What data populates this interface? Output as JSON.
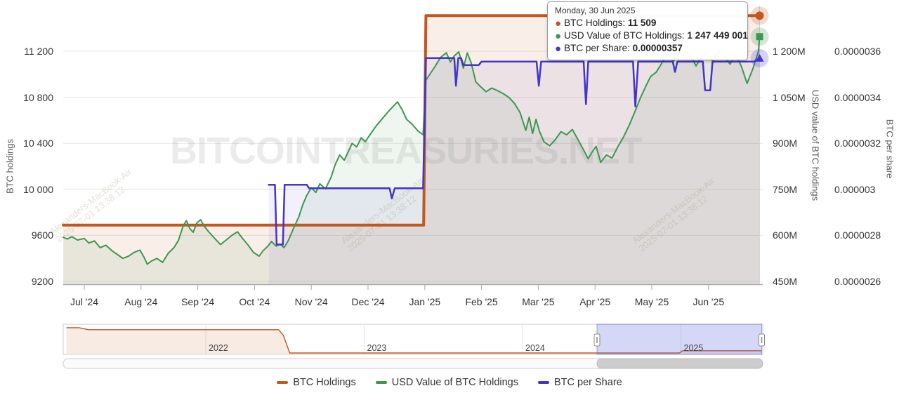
{
  "colors": {
    "orange": "#c2571f",
    "green": "#3d9751",
    "purple": "#4334cb",
    "orange_fill": "rgba(194,87,31,0.10)",
    "green_fill": "rgba(61,151,81,0.09)",
    "purple_fill": "rgba(67,52,203,0.07)",
    "grid": "#e7e7e5",
    "axis_line": "#a9a9a9",
    "crosshair": "#d6d6d6",
    "nav_selection": "rgba(104,112,224,0.28)",
    "nav_selection_border": "rgba(90,98,205,0.55)",
    "nav_border": "#cccccc",
    "nav_grid": "#e2e2e2",
    "scroll_thumb": "#cdcdcd",
    "watermark_brand": "#8a8a8a",
    "watermark_session": "#9a8f6a"
  },
  "tooltip": {
    "date": "Monday, 30 Jun 2025",
    "rows": [
      {
        "label": "BTC Holdings: ",
        "value": "11 509",
        "color": "#c2571f"
      },
      {
        "label": "USD Value of BTC Holdings: ",
        "value": "1 247 449 001",
        "color": "#3d9751"
      },
      {
        "label": "BTC per Share: ",
        "value": "0.00000357",
        "color": "#4334cb"
      }
    ]
  },
  "legend": {
    "items": [
      {
        "label": "BTC Holdings",
        "color": "#c2571f"
      },
      {
        "label": "USD Value of BTC Holdings",
        "color": "#3d9751"
      },
      {
        "label": "BTC per Share",
        "color": "#4334cb"
      }
    ]
  },
  "watermarks": {
    "brand": "BITCOINTREASURIES.NET",
    "brand_tm": "™",
    "session_line1": "Alexanders-MacBook-Air",
    "session_line2": "2025-07-01 13:38:12"
  },
  "chart_data": {
    "type": "line",
    "title": "",
    "grid": true,
    "legend_position": "bottom",
    "axes": {
      "left": {
        "title": "BTC holdings",
        "min": 9200,
        "step": 400,
        "ticks": [
          {
            "label": "9200",
            "v": 9200
          },
          {
            "label": "9600",
            "v": 9600
          },
          {
            "label": "10 000",
            "v": 10000
          },
          {
            "label": "10 400",
            "v": 10400
          },
          {
            "label": "10 800",
            "v": 10800
          },
          {
            "label": "11 200",
            "v": 11200
          }
        ]
      },
      "usd": {
        "title": "USD value of BTC holdings",
        "min": 450,
        "step": 150,
        "ticks": [
          {
            "label": "450M",
            "v": 450
          },
          {
            "label": "600M",
            "v": 600
          },
          {
            "label": "750M",
            "v": 750
          },
          {
            "label": "900M",
            "v": 900
          },
          {
            "label": "1 050M",
            "v": 1050
          },
          {
            "label": "1 200M",
            "v": 1200
          }
        ]
      },
      "share": {
        "title": "BTC per share",
        "min": 2.6e-06,
        "step": 2e-07,
        "ticks": [
          {
            "label": "0.0000026",
            "v": 2.6e-06
          },
          {
            "label": "0.0000028",
            "v": 2.8e-06
          },
          {
            "label": "0.000003",
            "v": 3e-06
          },
          {
            "label": "0.0000032",
            "v": 3.2e-06
          },
          {
            "label": "0.0000034",
            "v": 3.4e-06
          },
          {
            "label": "0.0000036",
            "v": 3.6e-06
          }
        ]
      },
      "x": {
        "ticks": [
          {
            "label": "Jul '24",
            "m": 0
          },
          {
            "label": "Aug '24",
            "m": 1
          },
          {
            "label": "Sep '24",
            "m": 2
          },
          {
            "label": "Oct '24",
            "m": 3
          },
          {
            "label": "Nov '24",
            "m": 4
          },
          {
            "label": "Dec '24",
            "m": 5
          },
          {
            "label": "Jan '25",
            "m": 6
          },
          {
            "label": "Feb '25",
            "m": 7
          },
          {
            "label": "Mar '25",
            "m": 8
          },
          {
            "label": "Apr '25",
            "m": 9
          },
          {
            "label": "May '25",
            "m": 10
          },
          {
            "label": "Jun '25",
            "m": 11
          }
        ]
      }
    },
    "series": [
      {
        "name": "BTC Holdings",
        "axis": "left",
        "color": "#c2571f",
        "width": 4,
        "fill": "rgba(194,87,31,0.10)",
        "points": [
          [
            -0.37,
            9689
          ],
          [
            5.98,
            9689
          ],
          [
            6.02,
            11509
          ],
          [
            11.9,
            11509
          ]
        ]
      },
      {
        "name": "USD Value of BTC Holdings",
        "axis": "usd",
        "color": "#3d9751",
        "width": 2,
        "fill": "rgba(61,151,81,0.09)",
        "points": [
          [
            -0.37,
            594
          ],
          [
            -0.3,
            588
          ],
          [
            -0.22,
            596
          ],
          [
            -0.12,
            585
          ],
          [
            0,
            590
          ],
          [
            0.08,
            575
          ],
          [
            0.18,
            582
          ],
          [
            0.28,
            560
          ],
          [
            0.38,
            568
          ],
          [
            0.5,
            548
          ],
          [
            0.58,
            538
          ],
          [
            0.68,
            525
          ],
          [
            0.78,
            532
          ],
          [
            0.88,
            545
          ],
          [
            0.98,
            552
          ],
          [
            1.05,
            530
          ],
          [
            1.11,
            506
          ],
          [
            1.18,
            516
          ],
          [
            1.28,
            525
          ],
          [
            1.38,
            512
          ],
          [
            1.48,
            542
          ],
          [
            1.58,
            560
          ],
          [
            1.66,
            584
          ],
          [
            1.74,
            630
          ],
          [
            1.8,
            648
          ],
          [
            1.86,
            622
          ],
          [
            1.92,
            610
          ],
          [
            1.98,
            640
          ],
          [
            2.05,
            651
          ],
          [
            2.12,
            628
          ],
          [
            2.2,
            610
          ],
          [
            2.3,
            590
          ],
          [
            2.4,
            570
          ],
          [
            2.5,
            585
          ],
          [
            2.6,
            600
          ],
          [
            2.7,
            612
          ],
          [
            2.78,
            592
          ],
          [
            2.88,
            570
          ],
          [
            2.98,
            545
          ],
          [
            3.08,
            532
          ],
          [
            3.15,
            550
          ],
          [
            3.22,
            562
          ],
          [
            3.3,
            580
          ],
          [
            3.38,
            565
          ],
          [
            3.45,
            572
          ],
          [
            3.52,
            560
          ],
          [
            3.6,
            585
          ],
          [
            3.68,
            620
          ],
          [
            3.78,
            660
          ],
          [
            3.85,
            700
          ],
          [
            3.92,
            730
          ],
          [
            4,
            755
          ],
          [
            4.08,
            740
          ],
          [
            4.15,
            768
          ],
          [
            4.25,
            752
          ],
          [
            4.35,
            790
          ],
          [
            4.42,
            830
          ],
          [
            4.5,
            862
          ],
          [
            4.58,
            845
          ],
          [
            4.65,
            872
          ],
          [
            4.72,
            900
          ],
          [
            4.8,
            888
          ],
          [
            4.88,
            918
          ],
          [
            4.95,
            905
          ],
          [
            5.05,
            932
          ],
          [
            5.15,
            958
          ],
          [
            5.25,
            980
          ],
          [
            5.35,
            1002
          ],
          [
            5.45,
            1022
          ],
          [
            5.52,
            1035
          ],
          [
            5.6,
            1010
          ],
          [
            5.68,
            978
          ],
          [
            5.78,
            962
          ],
          [
            5.88,
            940
          ],
          [
            5.97,
            928
          ],
          [
            6.02,
            1105
          ],
          [
            6.1,
            1128
          ],
          [
            6.18,
            1150
          ],
          [
            6.28,
            1180
          ],
          [
            6.38,
            1195
          ],
          [
            6.45,
            1165
          ],
          [
            6.52,
            1185
          ],
          [
            6.6,
            1198
          ],
          [
            6.68,
            1145
          ],
          [
            6.75,
            1195
          ],
          [
            6.82,
            1160
          ],
          [
            6.9,
            1100
          ],
          [
            6.98,
            1085
          ],
          [
            7.08,
            1068
          ],
          [
            7.18,
            1080
          ],
          [
            7.28,
            1072
          ],
          [
            7.38,
            1062
          ],
          [
            7.48,
            1050
          ],
          [
            7.58,
            1030
          ],
          [
            7.68,
            1000
          ],
          [
            7.78,
            942
          ],
          [
            7.84,
            985
          ],
          [
            7.9,
            932
          ],
          [
            7.96,
            978
          ],
          [
            8.02,
            940
          ],
          [
            8.1,
            905
          ],
          [
            8.2,
            892
          ],
          [
            8.3,
            912
          ],
          [
            8.4,
            938
          ],
          [
            8.5,
            928
          ],
          [
            8.6,
            945
          ],
          [
            8.7,
            912
          ],
          [
            8.8,
            878
          ],
          [
            8.88,
            850
          ],
          [
            8.95,
            872
          ],
          [
            9.02,
            890
          ],
          [
            9.1,
            838
          ],
          [
            9.2,
            862
          ],
          [
            9.3,
            852
          ],
          [
            9.4,
            888
          ],
          [
            9.5,
            920
          ],
          [
            9.6,
            958
          ],
          [
            9.7,
            1002
          ],
          [
            9.8,
            1048
          ],
          [
            9.9,
            1088
          ],
          [
            9.98,
            1118
          ],
          [
            10.08,
            1132
          ],
          [
            10.18,
            1162
          ],
          [
            10.28,
            1192
          ],
          [
            10.38,
            1165
          ],
          [
            10.48,
            1198
          ],
          [
            10.58,
            1178
          ],
          [
            10.68,
            1188
          ],
          [
            10.78,
            1152
          ],
          [
            10.88,
            1182
          ],
          [
            10.98,
            1195
          ],
          [
            11.08,
            1165
          ],
          [
            11.18,
            1200
          ],
          [
            11.28,
            1182
          ],
          [
            11.38,
            1158
          ],
          [
            11.48,
            1190
          ],
          [
            11.58,
            1150
          ],
          [
            11.68,
            1095
          ],
          [
            11.78,
            1142
          ],
          [
            11.88,
            1200
          ],
          [
            11.9,
            1247.449
          ]
        ]
      },
      {
        "name": "BTC per Share",
        "axis": "share",
        "color": "#4334cb",
        "width": 2.5,
        "fill": "rgba(67,52,203,0.07)",
        "points": [
          [
            3.25,
            3.02e-06
          ],
          [
            3.36,
            3.02e-06
          ],
          [
            3.39,
            2.76e-06
          ],
          [
            3.5,
            2.76e-06
          ],
          [
            3.53,
            3.02e-06
          ],
          [
            3.92,
            3.02e-06
          ],
          [
            3.96,
            3.005e-06
          ],
          [
            5.38,
            3.005e-06
          ],
          [
            5.42,
            2.96e-06
          ],
          [
            5.47,
            3.005e-06
          ],
          [
            5.97,
            3.005e-06
          ],
          [
            6.02,
            3.57e-06
          ],
          [
            6.52,
            3.57e-06
          ],
          [
            6.55,
            3.45e-06
          ],
          [
            6.59,
            3.57e-06
          ],
          [
            6.64,
            3.57e-06
          ],
          [
            6.68,
            3.54e-06
          ],
          [
            6.95,
            3.54e-06
          ],
          [
            7,
            3.555e-06
          ],
          [
            7.97,
            3.555e-06
          ],
          [
            8.01,
            3.45e-06
          ],
          [
            8.05,
            3.555e-06
          ],
          [
            8.8,
            3.555e-06
          ],
          [
            8.84,
            3.37e-06
          ],
          [
            8.88,
            3.555e-06
          ],
          [
            9.67,
            3.555e-06
          ],
          [
            9.71,
            3.36e-06
          ],
          [
            9.76,
            3.555e-06
          ],
          [
            10.37,
            3.555e-06
          ],
          [
            10.41,
            3.51e-06
          ],
          [
            10.45,
            3.555e-06
          ],
          [
            10.9,
            3.555e-06
          ],
          [
            10.94,
            3.43e-06
          ],
          [
            11.03,
            3.43e-06
          ],
          [
            11.07,
            3.555e-06
          ],
          [
            11.8,
            3.555e-06
          ],
          [
            11.9,
            3.57e-06
          ]
        ]
      }
    ],
    "hover": {
      "m": 11.9,
      "points": [
        {
          "series": 0,
          "v": 11509,
          "shape": "circle"
        },
        {
          "series": 1,
          "v": 1247.449,
          "shape": "square"
        },
        {
          "series": 2,
          "v": 3.57e-06,
          "shape": "triangle"
        }
      ]
    },
    "navigator": {
      "year_labels": [
        {
          "label": "2022",
          "year": 2022
        },
        {
          "label": "2023",
          "year": 2023
        },
        {
          "label": "2024",
          "year": 2024
        },
        {
          "label": "2025",
          "year": 2025
        }
      ],
      "points": [
        [
          2021.12,
          30200
        ],
        [
          2021.2,
          30200
        ],
        [
          2021.26,
          28600
        ],
        [
          2022.46,
          28600
        ],
        [
          2022.49,
          24000
        ],
        [
          2022.53,
          9689
        ],
        [
          2024.99,
          9689
        ],
        [
          2025.01,
          11509
        ],
        [
          2025.51,
          11509
        ]
      ],
      "vmin": 9689,
      "vmax": 30200,
      "selection": {
        "from": 2024.47,
        "to": 2025.51
      }
    }
  }
}
